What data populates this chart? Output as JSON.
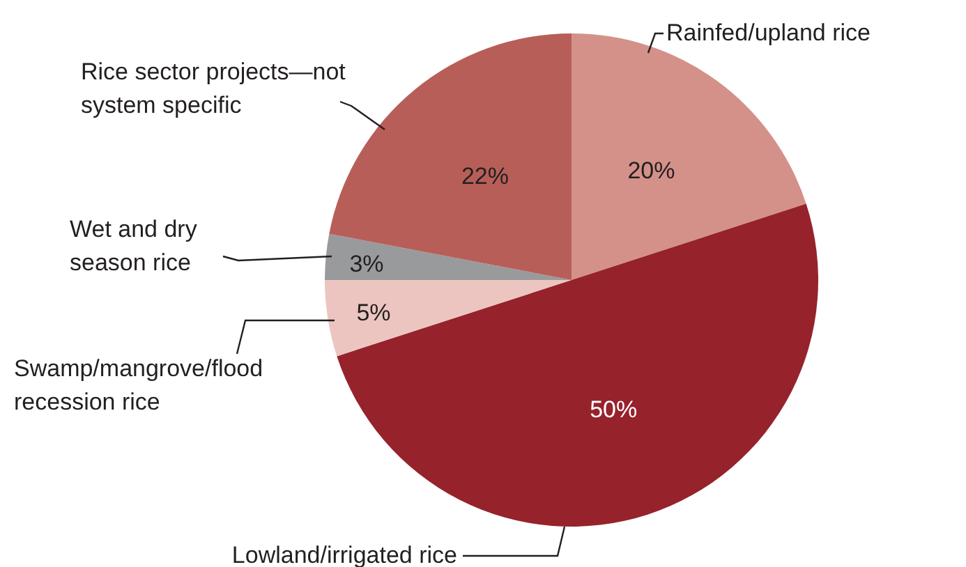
{
  "chart_data": {
    "type": "pie",
    "categories": [
      "Rainfed/upland rice",
      "Lowland/irrigated rice",
      "Swamp/mangrove/flood recession rice",
      "Wet and dry season rice",
      "Rice sector projects—not system specific"
    ],
    "values": [
      20,
      50,
      5,
      3,
      22
    ],
    "value_labels": [
      "20%",
      "50%",
      "5%",
      "3%",
      "22%"
    ],
    "colors": [
      "#d4918a",
      "#96222b",
      "#ecc5c1",
      "#999a9c",
      "#b85e58"
    ]
  }
}
